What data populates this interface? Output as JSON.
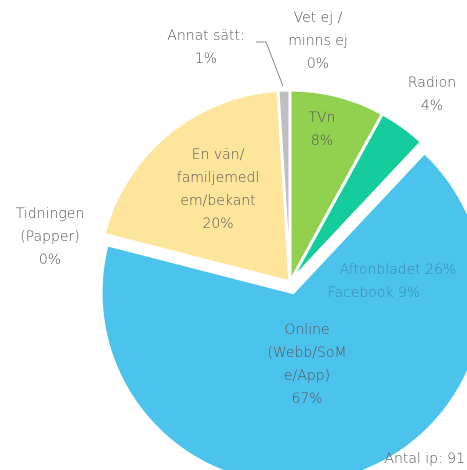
{
  "chart_data": {
    "type": "pie",
    "categories": [
      [
        "Vet ej /",
        "minns ej"
      ],
      [
        "TVn"
      ],
      [
        "Radion"
      ],
      [
        "Online",
        "(Webb/SoM",
        "e/App)"
      ],
      [
        "Tidningen",
        "(Papper)"
      ],
      [
        "En vän/",
        "familjemedl",
        "em/bekant"
      ],
      [
        "Annat sätt:"
      ]
    ],
    "values": [
      0,
      8,
      4,
      67,
      0,
      20,
      1
    ],
    "value_labels": [
      "0%",
      "8%",
      "4%",
      "67%",
      "0%",
      "20%",
      "1%"
    ],
    "colors": [
      "#9e9e9e",
      "#92d050",
      "#14cc9c",
      "#4cc3ed",
      "#f5d38a",
      "#fde59c",
      "#bfbfbf"
    ],
    "exploded": 3,
    "annotations": [
      "Aftonbladet 26%",
      "Facebook 9%",
      "Antal ip: 91"
    ]
  }
}
